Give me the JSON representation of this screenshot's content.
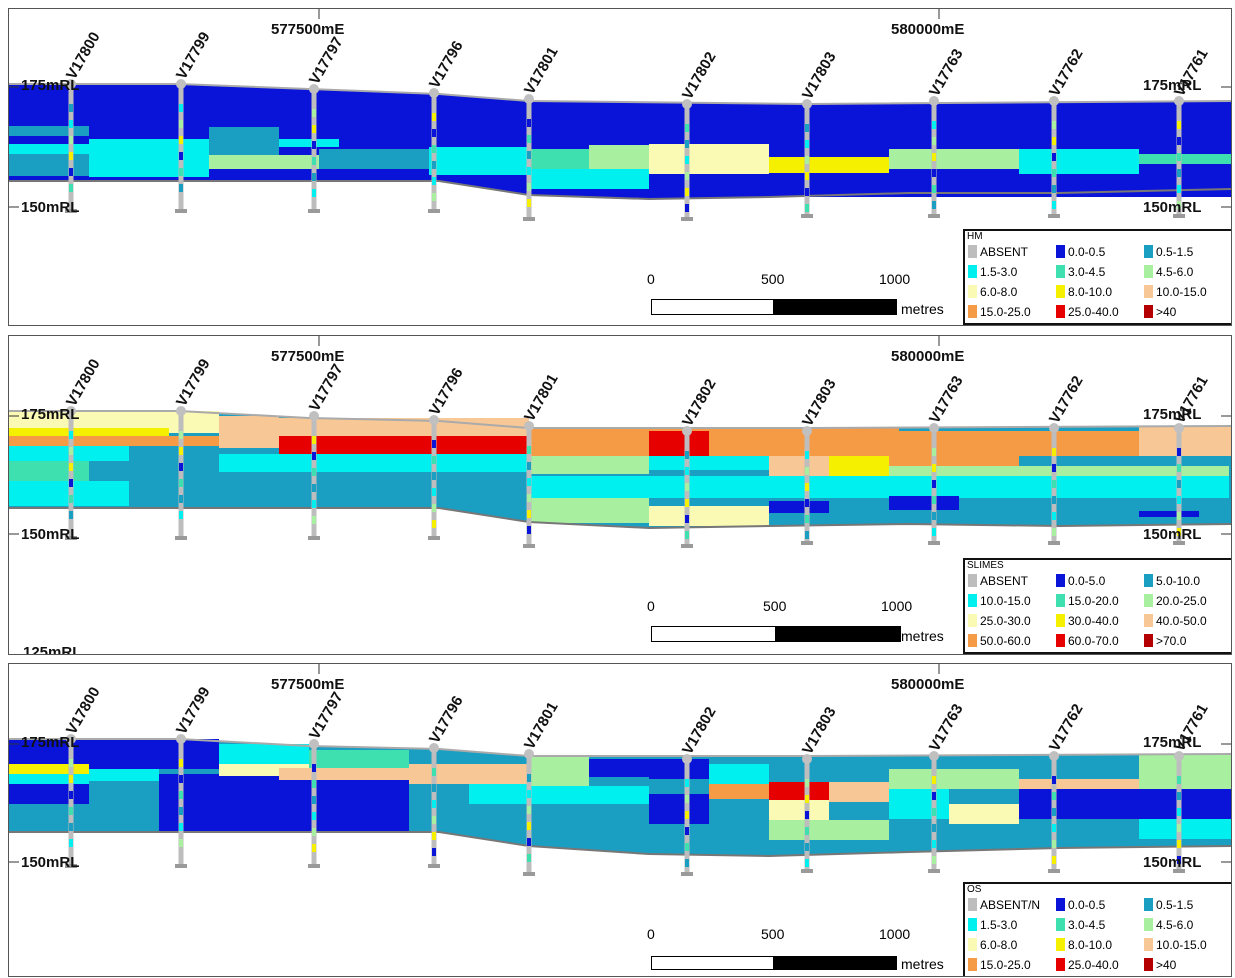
{
  "easting_labels": [
    "577500mE",
    "580000mE"
  ],
  "rl_labels": [
    "175mRL",
    "150mRL"
  ],
  "partial_rl_label": "125mRL",
  "holes": [
    "V17800",
    "V17799",
    "V17797",
    "V17796",
    "V17801",
    "V17802",
    "V17803",
    "V17763",
    "V17762",
    "V17761"
  ],
  "scalebar": {
    "labels": [
      "0",
      "500",
      "1000"
    ],
    "unit": "metres"
  },
  "panels": [
    {
      "id": "hm",
      "legend_title": "HM",
      "legend": [
        {
          "label": "ABSENT",
          "color": "#bdbdbd"
        },
        {
          "label": "0.0-0.5",
          "color": "#0a14d8"
        },
        {
          "label": "0.5-1.5",
          "color": "#1a9ec2"
        },
        {
          "label": "1.5-3.0",
          "color": "#00f0f0"
        },
        {
          "label": "3.0-4.5",
          "color": "#3fe0b0"
        },
        {
          "label": "4.5-6.0",
          "color": "#a8f0a0"
        },
        {
          "label": "6.0-8.0",
          "color": "#fafab4"
        },
        {
          "label": "8.0-10.0",
          "color": "#f5f000"
        },
        {
          "label": "10.0-15.0",
          "color": "#f7c896"
        },
        {
          "label": "15.0-25.0",
          "color": "#f59a45"
        },
        {
          "label": "25.0-40.0",
          "color": "#e60000"
        },
        {
          "label": ">40",
          "color": "#b40000"
        }
      ]
    },
    {
      "id": "slimes",
      "legend_title": "SLIMES",
      "legend": [
        {
          "label": "ABSENT",
          "color": "#bdbdbd"
        },
        {
          "label": "0.0-5.0",
          "color": "#0a14d8"
        },
        {
          "label": "5.0-10.0",
          "color": "#1a9ec2"
        },
        {
          "label": "10.0-15.0",
          "color": "#00f0f0"
        },
        {
          "label": "15.0-20.0",
          "color": "#3fe0b0"
        },
        {
          "label": "20.0-25.0",
          "color": "#a8f0a0"
        },
        {
          "label": "25.0-30.0",
          "color": "#fafab4"
        },
        {
          "label": "30.0-40.0",
          "color": "#f5f000"
        },
        {
          "label": "40.0-50.0",
          "color": "#f7c896"
        },
        {
          "label": "50.0-60.0",
          "color": "#f59a45"
        },
        {
          "label": "60.0-70.0",
          "color": "#e60000"
        },
        {
          "label": ">70.0",
          "color": "#b40000"
        }
      ]
    },
    {
      "id": "os",
      "legend_title": "OS",
      "legend": [
        {
          "label": "ABSENT/N",
          "color": "#bdbdbd"
        },
        {
          "label": "0.0-0.5",
          "color": "#0a14d8"
        },
        {
          "label": "0.5-1.5",
          "color": "#1a9ec2"
        },
        {
          "label": "1.5-3.0",
          "color": "#00f0f0"
        },
        {
          "label": "3.0-4.5",
          "color": "#3fe0b0"
        },
        {
          "label": "4.5-6.0",
          "color": "#a8f0a0"
        },
        {
          "label": "6.0-8.0",
          "color": "#fafab4"
        },
        {
          "label": "8.0-10.0",
          "color": "#f5f000"
        },
        {
          "label": "10.0-15.0",
          "color": "#f7c896"
        },
        {
          "label": "15.0-25.0",
          "color": "#f59a45"
        },
        {
          "label": "25.0-40.0",
          "color": "#e60000"
        },
        {
          "label": ">40",
          "color": "#b40000"
        }
      ]
    }
  ]
}
